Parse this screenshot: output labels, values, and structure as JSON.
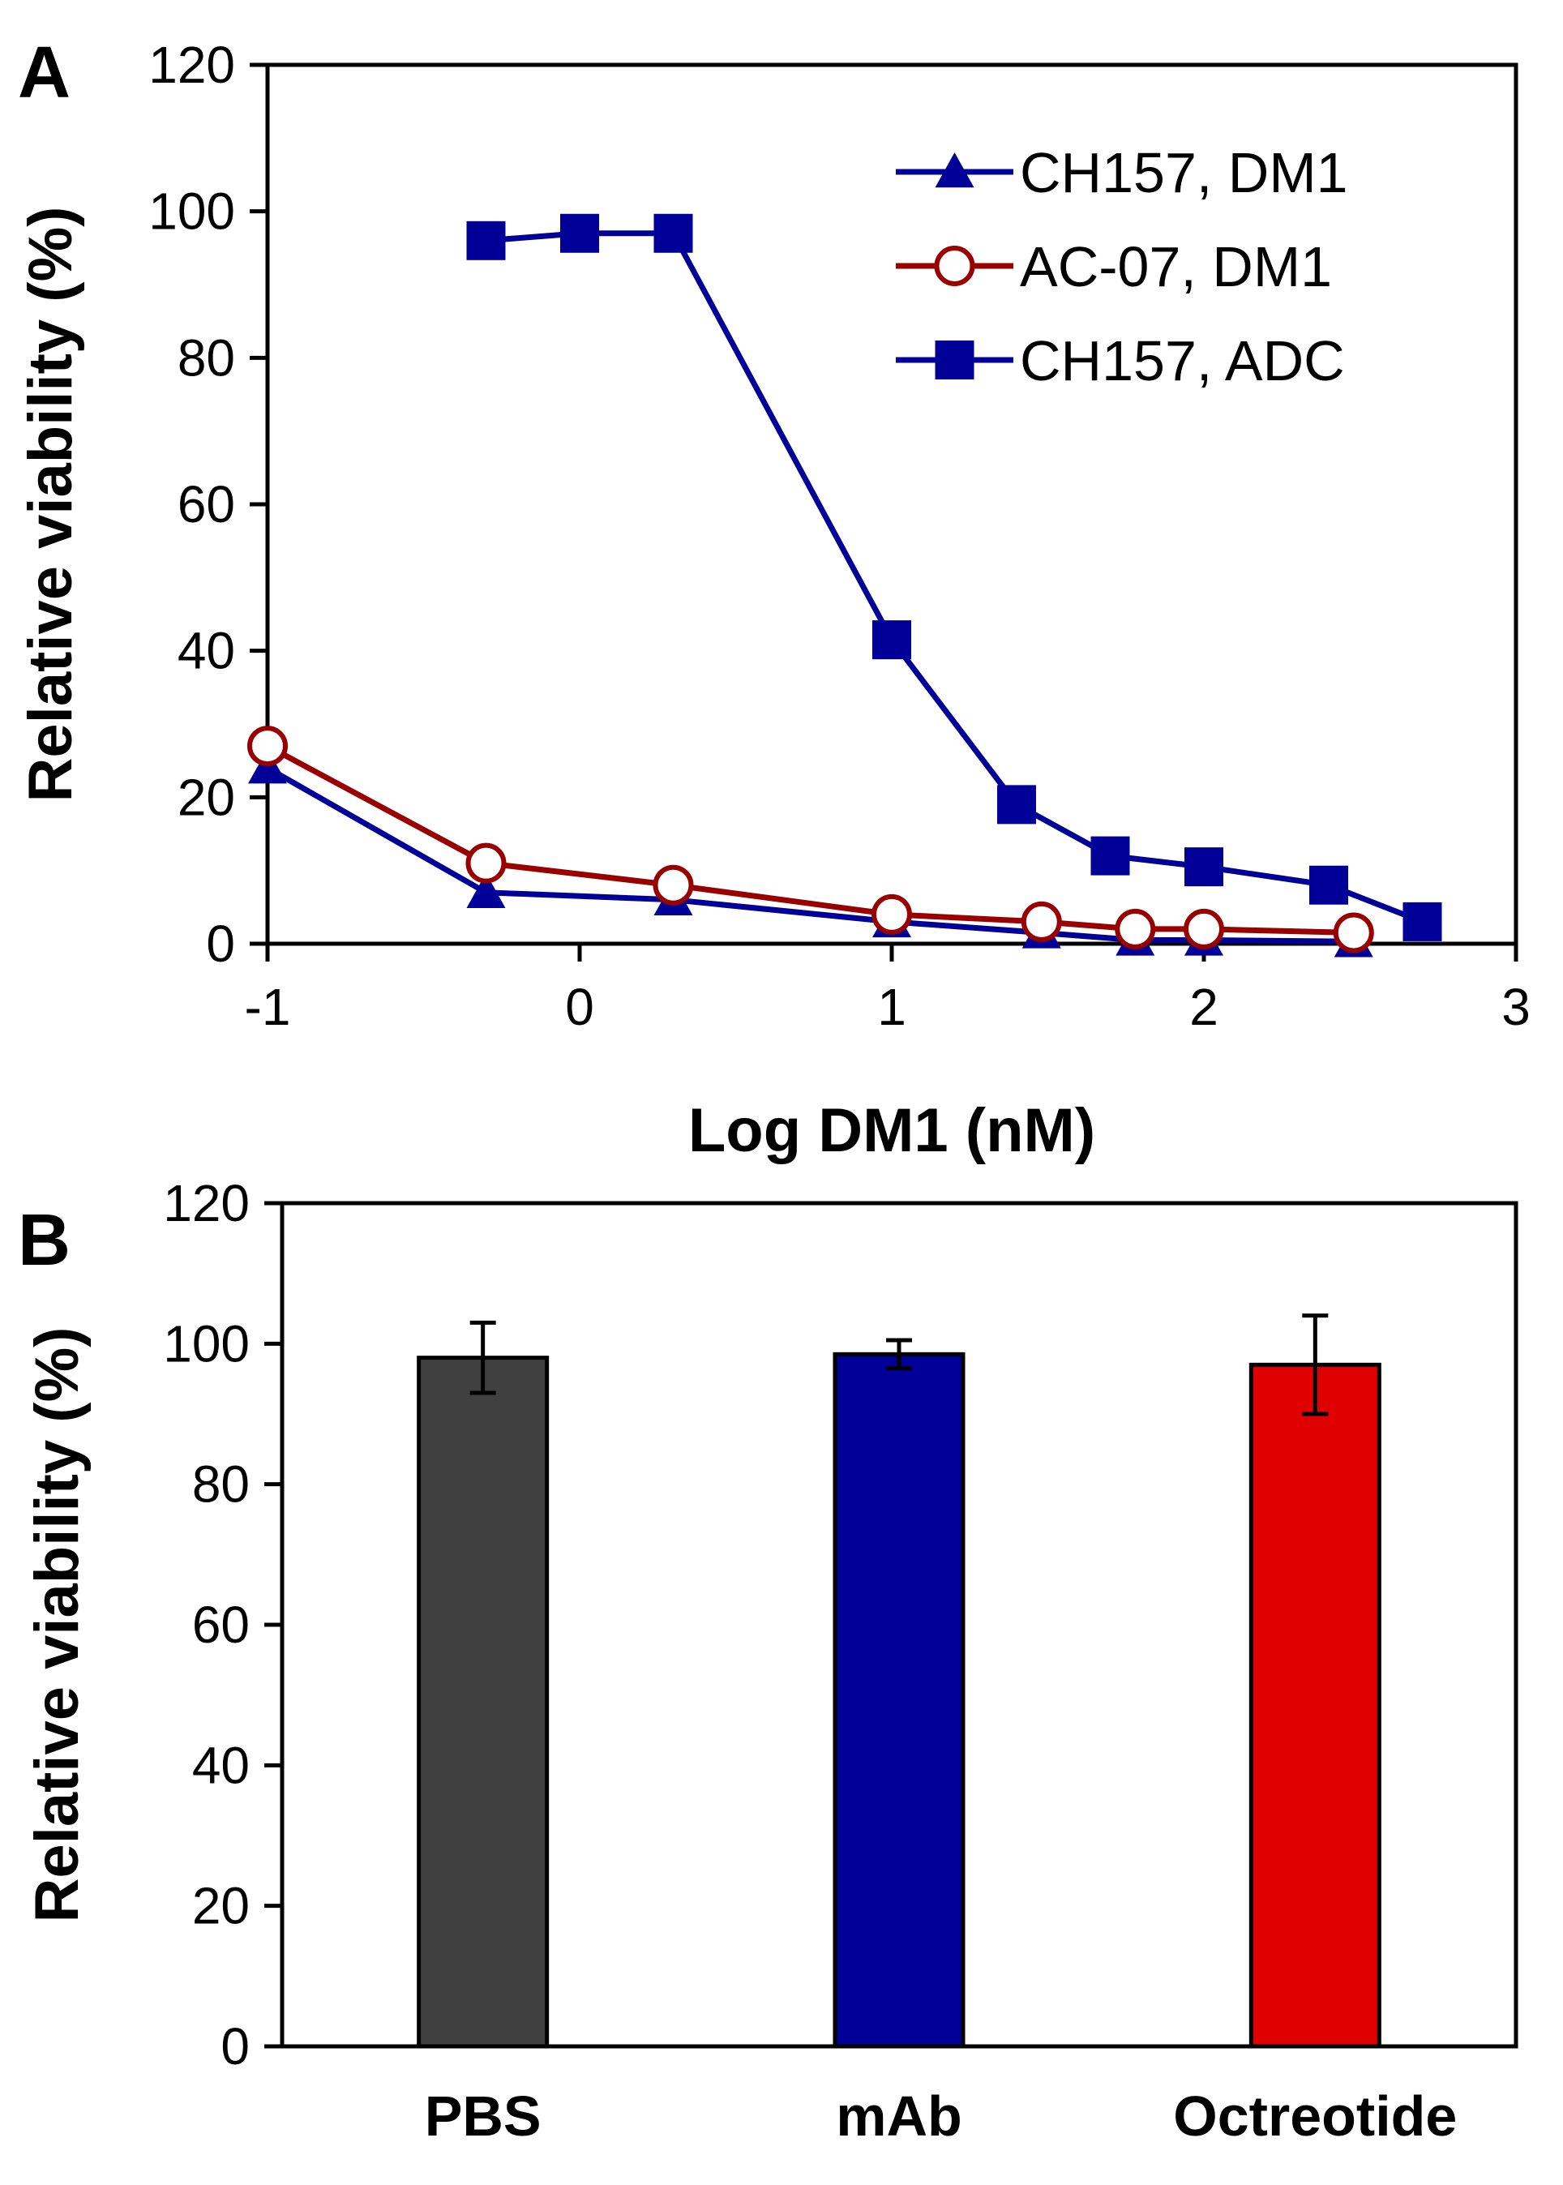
{
  "chart_data": [
    {
      "panel": "A",
      "type": "line",
      "xlabel": "Log DM1 (nM)",
      "ylabel": "Relative viability (%)",
      "xlim": [
        -1,
        3
      ],
      "ylim": [
        0,
        120
      ],
      "xticks": [
        -1,
        0,
        1,
        2,
        3
      ],
      "yticks": [
        0,
        20,
        40,
        60,
        80,
        100,
        120
      ],
      "grid": false,
      "legend_position": "top-right",
      "series": [
        {
          "name": "CH157, DM1",
          "color": "#000099",
          "marker": "triangle",
          "x": [
            -1,
            -0.3,
            0.3,
            1,
            1.48,
            1.78,
            2,
            2.48
          ],
          "y": [
            24,
            7,
            6,
            3,
            1.5,
            0.5,
            0.5,
            0.3
          ]
        },
        {
          "name": "AC-07, DM1",
          "color": "#990000",
          "marker": "circle-open",
          "x": [
            -1,
            -0.3,
            0.3,
            1,
            1.48,
            1.78,
            2,
            2.48
          ],
          "y": [
            27,
            11,
            8,
            4,
            3,
            2,
            2,
            1.5
          ]
        },
        {
          "name": "CH157, ADC",
          "color": "#000099",
          "marker": "square",
          "x": [
            -0.3,
            0,
            0.3,
            1,
            1.4,
            1.7,
            2,
            2.4,
            2.7
          ],
          "y": [
            96,
            97,
            97,
            41.5,
            19,
            12,
            10.5,
            8,
            3
          ]
        }
      ]
    },
    {
      "panel": "B",
      "type": "bar",
      "ylabel": "Relative viability (%)",
      "ylim": [
        0,
        120
      ],
      "yticks": [
        0,
        20,
        40,
        60,
        80,
        100,
        120
      ],
      "grid": false,
      "categories": [
        "PBS",
        "mAb",
        "Octreotide"
      ],
      "values": [
        98,
        98.5,
        97
      ],
      "errors": [
        5,
        2,
        7
      ],
      "colors": [
        "#404040",
        "#000099",
        "#e00000"
      ]
    }
  ]
}
